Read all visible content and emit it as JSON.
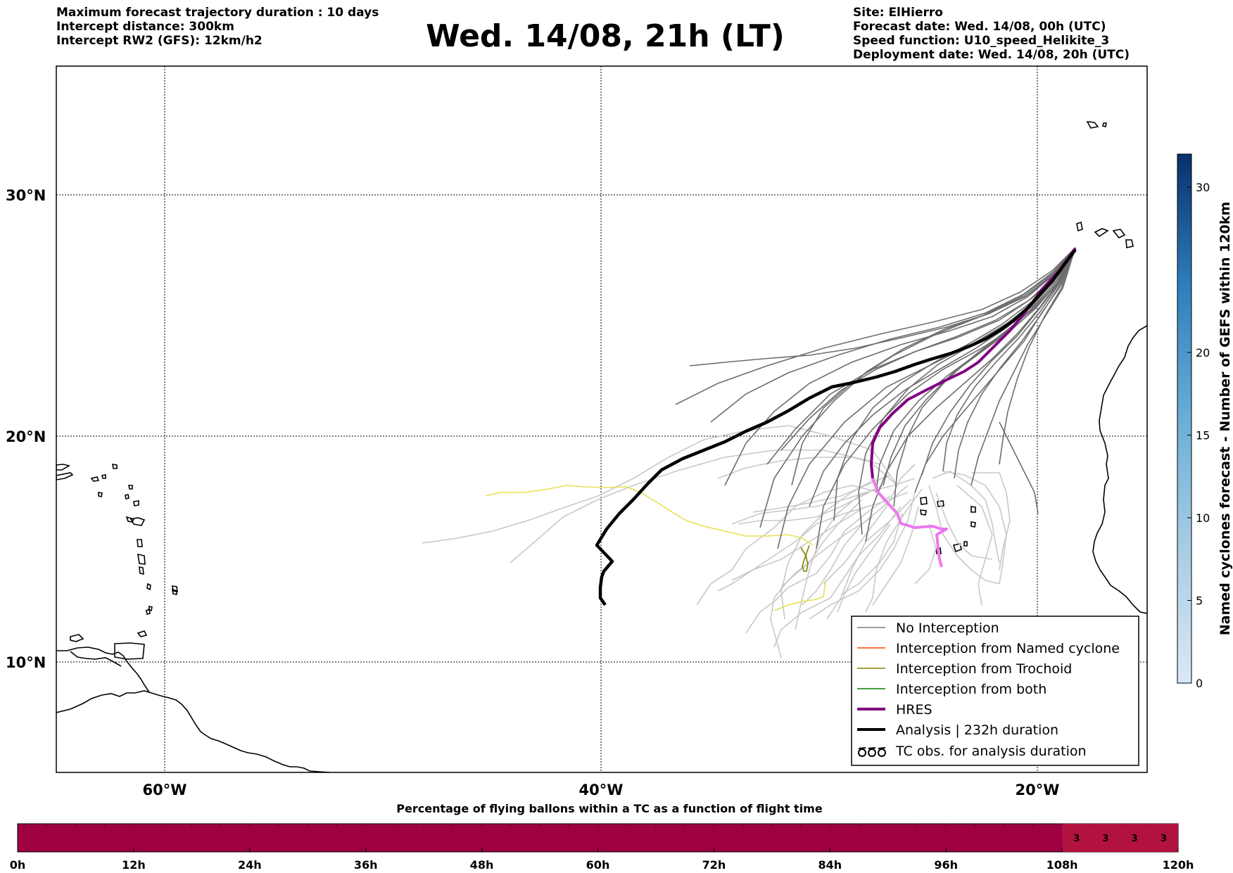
{
  "header": {
    "left_lines": [
      "Maximum forecast trajectory duration : 10 days",
      "Intercept distance: 300km",
      "Intercept RW2 (GFS):  12km/h2"
    ],
    "title": "Wed. 14/08, 21h (LT)",
    "right_lines": [
      "Site: ElHierro",
      "Forecast date: Wed. 14/08, 00h (UTC)",
      "Speed function: U10_speed_Helikite_3",
      "Deployment date: Wed. 14/08, 20h (UTC)"
    ]
  },
  "map": {
    "lat_labels": [
      "30°N",
      "20°N",
      "10°N"
    ],
    "lon_labels": [
      "60°W",
      "40°W",
      "20°W"
    ],
    "gridlines": true,
    "legend": {
      "placement": "lower-right",
      "items": [
        {
          "label": "No Interception",
          "color": "#7f7f7f",
          "style": "thin"
        },
        {
          "label": "Interception from Named cyclone",
          "color": "#ff4500",
          "style": "thin"
        },
        {
          "label": "Interception from Trochoid",
          "color": "#808000",
          "style": "thin"
        },
        {
          "label": "Interception from both",
          "color": "#008000",
          "style": "thin"
        },
        {
          "label": "HRES",
          "color": "#800080",
          "style": "thick"
        },
        {
          "label": "Analysis | 232h duration",
          "color": "#000000",
          "style": "thick"
        },
        {
          "label": "TC obs. for analysis duration",
          "color": "#000000",
          "style": "symbol",
          "symbol": "ൾൾൾ"
        }
      ]
    },
    "colors": {
      "no_interception": "#6e6e6e",
      "light_tracks": "#c8c8c8",
      "yellow_track": "#e8e050",
      "trochoid": "#808000",
      "hres": "#800080",
      "hres_late": "#ee77ee",
      "analysis": "#000000"
    }
  },
  "colorbar": {
    "title": "Named cyclones forecast - Number of GEFS within 120km",
    "ticks": [
      "0",
      "5",
      "10",
      "15",
      "20",
      "30"
    ],
    "range": [
      0,
      32
    ],
    "colors": [
      "#dbe8f6",
      "#08306b"
    ]
  },
  "flight_bar": {
    "title": "Percentage of flying ballons within a TC as a function of flight time",
    "ticks": [
      "0h",
      "12h",
      "24h",
      "36h",
      "48h",
      "60h",
      "72h",
      "84h",
      "96h",
      "108h",
      "120h"
    ],
    "cells_with_values": [
      {
        "hour": 111,
        "value": "3"
      },
      {
        "hour": 114,
        "value": "3"
      },
      {
        "hour": 117,
        "value": "3"
      },
      {
        "hour": 120,
        "value": "3"
      }
    ],
    "colors": {
      "base": "#9e0040",
      "highlight": "#b2123f"
    }
  }
}
